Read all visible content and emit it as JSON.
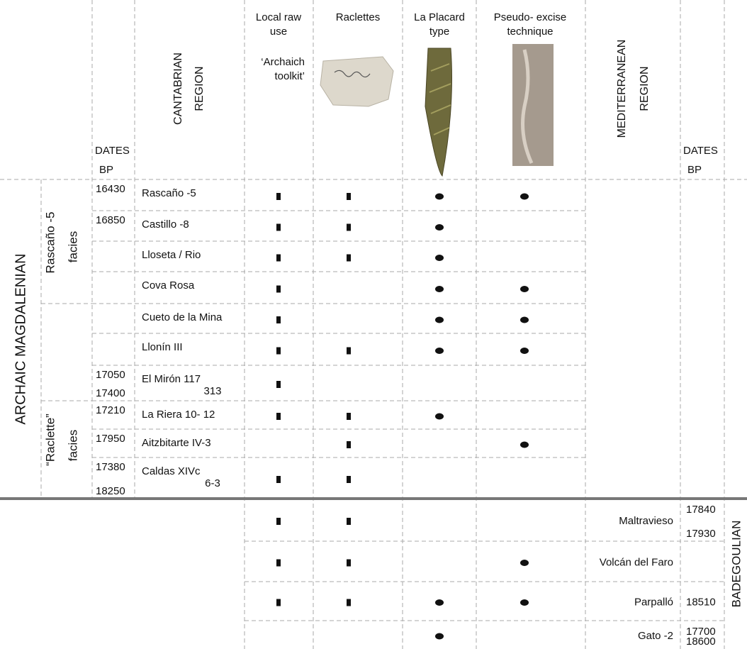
{
  "header": {
    "dates_left": [
      "DATES",
      "BP"
    ],
    "cantabrian": [
      "CANTABRIAN",
      "REGION"
    ],
    "local_raw": [
      "Local raw",
      "use"
    ],
    "archaic_toolkit": [
      "‘Archaich",
      "toolkit’"
    ],
    "raclettes": "Raclettes",
    "placard": [
      "La Placard",
      "type"
    ],
    "pseudo": [
      "Pseudo- excise",
      "technique"
    ],
    "mediterranean": [
      "MEDITERRANEAN",
      "REGION"
    ],
    "dates_right": [
      "DATES",
      "BP"
    ]
  },
  "groups": {
    "archaic": "ARCHAIC MAGDALENIAN",
    "rascano_facies": [
      "Rascaño -5",
      "facies"
    ],
    "raclette_facies": [
      "“Raclette”",
      "facies"
    ],
    "badegoulian": "BADEGOULIAN"
  },
  "cantabrian_rows": [
    {
      "dates": [
        16430
      ],
      "site": [
        "Rascaño -5"
      ],
      "local": true,
      "raclettes": true,
      "placard": true,
      "pseudo": true
    },
    {
      "dates": [
        16850
      ],
      "site": [
        "Castillo -8"
      ],
      "local": true,
      "raclettes": true,
      "placard": true,
      "pseudo": false
    },
    {
      "dates": [],
      "site": [
        "Lloseta / Rio"
      ],
      "local": true,
      "raclettes": true,
      "placard": true,
      "pseudo": false
    },
    {
      "dates": [],
      "site": [
        "Cova Rosa"
      ],
      "local": true,
      "raclettes": false,
      "placard": true,
      "pseudo": true
    },
    {
      "dates": [],
      "site": [
        "Cueto de la Mina"
      ],
      "local": true,
      "raclettes": false,
      "placard": true,
      "pseudo": true
    },
    {
      "dates": [],
      "site": [
        "Llonín III"
      ],
      "local": true,
      "raclettes": true,
      "placard": true,
      "pseudo": true
    },
    {
      "dates": [
        17050,
        17400
      ],
      "site": [
        "El Mirón 117",
        "313"
      ],
      "local": true,
      "raclettes": false,
      "placard": false,
      "pseudo": false
    },
    {
      "dates": [
        17210
      ],
      "site": [
        "La Riera 10- 12"
      ],
      "local": true,
      "raclettes": true,
      "placard": true,
      "pseudo": false
    },
    {
      "dates": [
        17950
      ],
      "site": [
        "Aitzbitarte IV-3"
      ],
      "local": false,
      "raclettes": true,
      "placard": false,
      "pseudo": true
    },
    {
      "dates": [
        17380,
        18250
      ],
      "site": [
        "Caldas XIVc",
        "6-3"
      ],
      "local": true,
      "raclettes": true,
      "placard": false,
      "pseudo": false
    }
  ],
  "mediterranean_rows": [
    {
      "site": "Maltravieso",
      "dates": [
        17840,
        17930
      ],
      "local": true,
      "raclettes": true,
      "placard": false,
      "pseudo": false
    },
    {
      "site": "Volcán del Faro",
      "dates": [],
      "local": true,
      "raclettes": true,
      "placard": false,
      "pseudo": true
    },
    {
      "site": "Parpalló",
      "dates": [
        18510
      ],
      "local": true,
      "raclettes": true,
      "placard": true,
      "pseudo": true
    },
    {
      "site": "Gato -2",
      "dates": [
        17700,
        18600
      ],
      "local": false,
      "raclettes": false,
      "placard": true,
      "pseudo": false
    }
  ]
}
